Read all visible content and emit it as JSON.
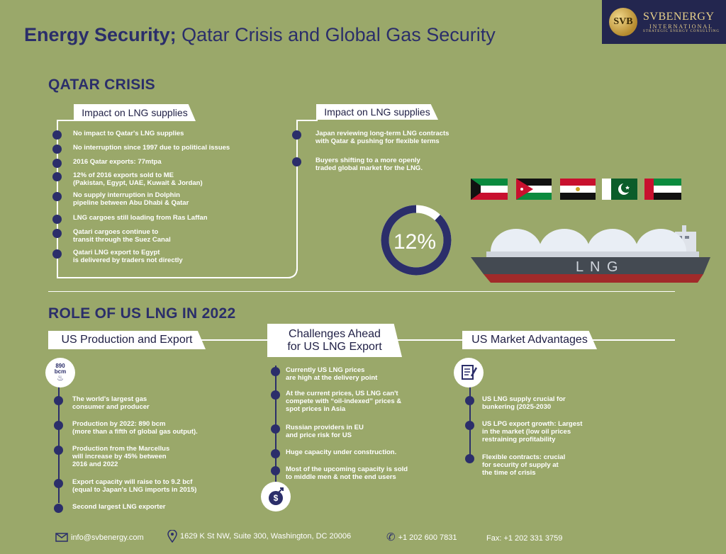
{
  "header": {
    "title_bold": "Energy Security;",
    "title_rest": " Qatar Crisis and Global Gas Security"
  },
  "logo": {
    "seal": "SVB",
    "name": "SVBENERGY",
    "sub": "INTERNATIONAL",
    "tag": "STRATEGIC ENERGY CONSULTING"
  },
  "qatar": {
    "title": "QATAR CRISIS",
    "left_tab": "Impact on LNG supplies",
    "right_tab": "Impact on LNG supplies",
    "left_items": [
      [
        "No impact to Qatar's LNG supplies"
      ],
      [
        "No interruption since 1997 due to political issues"
      ],
      [
        "2016 Qatar exports: 77mtpa"
      ],
      [
        "12% of 2016 exports sold to ME",
        "(Pakistan, Egypt, UAE, Kuwait & Jordan)"
      ],
      [
        "No supply interruption in Dolphin",
        "pipeline between Abu Dhabi & Qatar"
      ],
      [
        "LNG cargoes still loading from Ras Laffan"
      ],
      [
        "Qatari cargoes continue to",
        "transit through the Suez Canal"
      ],
      [
        "Qatari LNG export to Egypt",
        "is delivered by traders not directly"
      ]
    ],
    "right_items": [
      [
        "Japan reviewing long-term LNG contracts",
        "with Qatar & pushing for flexible terms"
      ],
      [
        "Buyers shifting to a more openly",
        "traded global market for the LNG."
      ]
    ],
    "gauge": {
      "label": "12%",
      "value": 12
    },
    "ship_label": "L N G",
    "colors": {
      "accent": "#2b2e6a",
      "background": "#9aa86a"
    }
  },
  "us": {
    "title": "ROLE OF US LNG IN 2022",
    "col1": {
      "tab": "US Production and Export",
      "icon_label_top": "890",
      "icon_label_bottom": "bcm",
      "items": [
        [
          "The world's largest gas",
          "consumer and producer"
        ],
        [
          "Production by 2022: 890 bcm",
          "(more than a fifth of global gas output)."
        ],
        [
          "Production from the Marcellus",
          "will increase by 45% between",
          "2016 and 2022"
        ],
        [
          "Export capacity will raise to to 9.2 bcf",
          "(equal to Japan's LNG imports in 2015)"
        ],
        [
          "Second largest LNG exporter"
        ]
      ]
    },
    "col2": {
      "tab_line1": "Challenges Ahead",
      "tab_line2": "for US LNG Export",
      "items": [
        [
          "Currently US LNG prices",
          "are high at the delivery point"
        ],
        [
          "At the current prices, US LNG can't",
          "compete with “oil-indexed” prices &",
          "spot prices in Asia"
        ],
        [
          "Russian providers in EU",
          "and price risk for US"
        ],
        [
          "Huge capacity under construction."
        ],
        [
          "Most of the upcoming capacity is sold",
          "to middle men & not the end users"
        ]
      ]
    },
    "col3": {
      "tab": "US Market Advantages",
      "items": [
        [
          "US LNG supply crucial for",
          "bunkering (2025-2030"
        ],
        [
          "US LPG export growth: Largest",
          "in the market  (low oil prices",
          "restraining profitability"
        ],
        [
          "Flexible contracts: crucial",
          "for security of supply at",
          "the time of crisis"
        ]
      ]
    }
  },
  "footer": {
    "email": "info@svbenergy.com",
    "address": "1629 K St NW, Suite 300, Washington, DC 20006",
    "phone": "+1 202 600 7831",
    "fax": "Fax: +1 202 331 3759"
  }
}
